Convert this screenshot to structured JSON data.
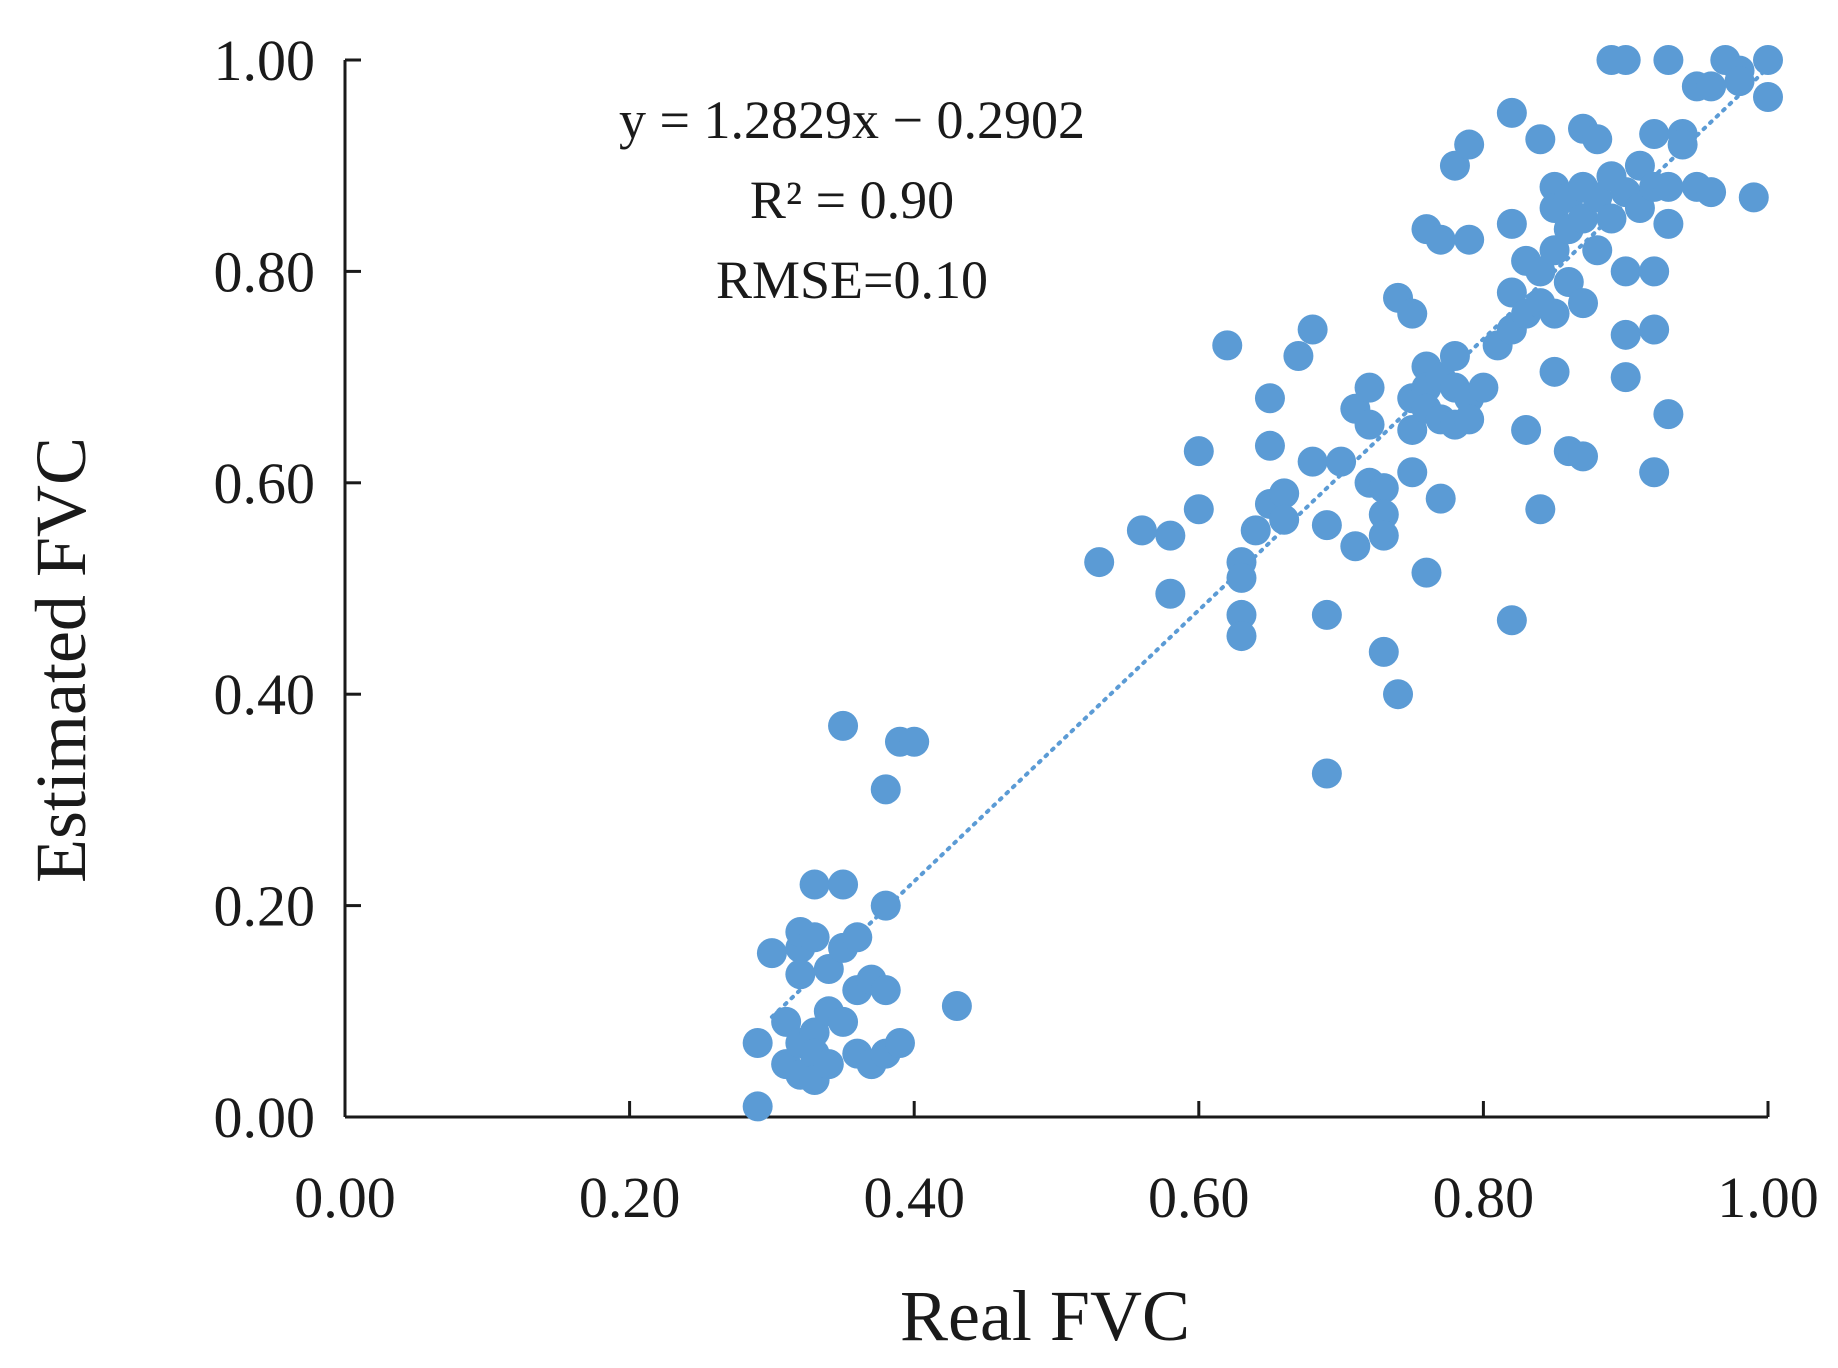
{
  "chart_data": {
    "type": "scatter",
    "xlabel": "Real FVC",
    "ylabel": "Estimated FVC",
    "xlim": [
      0,
      1
    ],
    "ylim": [
      0,
      1
    ],
    "xticks": [
      "0.00",
      "0.20",
      "0.40",
      "0.60",
      "0.80",
      "1.00"
    ],
    "yticks": [
      "0.00",
      "0.20",
      "0.40",
      "0.60",
      "0.80",
      "1.00"
    ],
    "grid": false,
    "point_color": "#5B9BD5",
    "trendline": {
      "slope": 1.2829,
      "intercept": -0.2902,
      "style": "dotted",
      "x_range": [
        0.3,
        1.0
      ]
    },
    "annotations": {
      "equation": "y = 1.2829x − 0.2902",
      "r2": "R² = 0.90",
      "rmse": "RMSE=0.10"
    },
    "series": [
      {
        "name": "samples",
        "points": [
          [
            0.29,
            0.01
          ],
          [
            0.29,
            0.07
          ],
          [
            0.3,
            0.155
          ],
          [
            0.31,
            0.09
          ],
          [
            0.31,
            0.05
          ],
          [
            0.32,
            0.16
          ],
          [
            0.32,
            0.175
          ],
          [
            0.32,
            0.135
          ],
          [
            0.32,
            0.07
          ],
          [
            0.32,
            0.04
          ],
          [
            0.33,
            0.22
          ],
          [
            0.33,
            0.17
          ],
          [
            0.33,
            0.08
          ],
          [
            0.33,
            0.06
          ],
          [
            0.33,
            0.035
          ],
          [
            0.34,
            0.14
          ],
          [
            0.34,
            0.1
          ],
          [
            0.34,
            0.05
          ],
          [
            0.35,
            0.16
          ],
          [
            0.35,
            0.09
          ],
          [
            0.35,
            0.22
          ],
          [
            0.35,
            0.37
          ],
          [
            0.36,
            0.17
          ],
          [
            0.36,
            0.12
          ],
          [
            0.36,
            0.06
          ],
          [
            0.37,
            0.13
          ],
          [
            0.37,
            0.05
          ],
          [
            0.38,
            0.12
          ],
          [
            0.38,
            0.06
          ],
          [
            0.38,
            0.2
          ],
          [
            0.38,
            0.31
          ],
          [
            0.39,
            0.355
          ],
          [
            0.4,
            0.355
          ],
          [
            0.39,
            0.07
          ],
          [
            0.43,
            0.105
          ],
          [
            0.53,
            0.525
          ],
          [
            0.56,
            0.555
          ],
          [
            0.58,
            0.55
          ],
          [
            0.58,
            0.495
          ],
          [
            0.6,
            0.63
          ],
          [
            0.6,
            0.575
          ],
          [
            0.62,
            0.73
          ],
          [
            0.63,
            0.525
          ],
          [
            0.63,
            0.51
          ],
          [
            0.63,
            0.475
          ],
          [
            0.63,
            0.455
          ],
          [
            0.64,
            0.555
          ],
          [
            0.65,
            0.68
          ],
          [
            0.65,
            0.635
          ],
          [
            0.65,
            0.58
          ],
          [
            0.66,
            0.59
          ],
          [
            0.66,
            0.565
          ],
          [
            0.67,
            0.72
          ],
          [
            0.68,
            0.745
          ],
          [
            0.68,
            0.62
          ],
          [
            0.69,
            0.56
          ],
          [
            0.69,
            0.475
          ],
          [
            0.69,
            0.325
          ],
          [
            0.7,
            0.62
          ],
          [
            0.71,
            0.67
          ],
          [
            0.71,
            0.54
          ],
          [
            0.72,
            0.69
          ],
          [
            0.72,
            0.655
          ],
          [
            0.72,
            0.6
          ],
          [
            0.73,
            0.595
          ],
          [
            0.73,
            0.57
          ],
          [
            0.73,
            0.55
          ],
          [
            0.73,
            0.44
          ],
          [
            0.74,
            0.4
          ],
          [
            0.74,
            0.775
          ],
          [
            0.75,
            0.76
          ],
          [
            0.75,
            0.68
          ],
          [
            0.75,
            0.65
          ],
          [
            0.75,
            0.61
          ],
          [
            0.76,
            0.71
          ],
          [
            0.76,
            0.69
          ],
          [
            0.76,
            0.67
          ],
          [
            0.76,
            0.84
          ],
          [
            0.77,
            0.83
          ],
          [
            0.77,
            0.7
          ],
          [
            0.77,
            0.66
          ],
          [
            0.77,
            0.585
          ],
          [
            0.76,
            0.515
          ],
          [
            0.78,
            0.72
          ],
          [
            0.78,
            0.69
          ],
          [
            0.78,
            0.655
          ],
          [
            0.78,
            0.9
          ],
          [
            0.79,
            0.92
          ],
          [
            0.79,
            0.83
          ],
          [
            0.79,
            0.68
          ],
          [
            0.79,
            0.66
          ],
          [
            0.8,
            0.69
          ],
          [
            0.81,
            0.73
          ],
          [
            0.82,
            0.95
          ],
          [
            0.82,
            0.845
          ],
          [
            0.82,
            0.745
          ],
          [
            0.82,
            0.78
          ],
          [
            0.83,
            0.81
          ],
          [
            0.83,
            0.76
          ],
          [
            0.83,
            0.65
          ],
          [
            0.82,
            0.47
          ],
          [
            0.84,
            0.925
          ],
          [
            0.84,
            0.8
          ],
          [
            0.84,
            0.77
          ],
          [
            0.84,
            0.575
          ],
          [
            0.85,
            0.88
          ],
          [
            0.85,
            0.86
          ],
          [
            0.85,
            0.82
          ],
          [
            0.85,
            0.76
          ],
          [
            0.85,
            0.705
          ],
          [
            0.86,
            0.87
          ],
          [
            0.86,
            0.84
          ],
          [
            0.86,
            0.79
          ],
          [
            0.86,
            0.63
          ],
          [
            0.87,
            0.935
          ],
          [
            0.87,
            0.88
          ],
          [
            0.87,
            0.85
          ],
          [
            0.87,
            0.77
          ],
          [
            0.87,
            0.625
          ],
          [
            0.88,
            0.925
          ],
          [
            0.88,
            0.87
          ],
          [
            0.88,
            0.82
          ],
          [
            0.89,
            1.0
          ],
          [
            0.89,
            0.89
          ],
          [
            0.89,
            0.85
          ],
          [
            0.9,
            1.0
          ],
          [
            0.9,
            0.875
          ],
          [
            0.9,
            0.8
          ],
          [
            0.9,
            0.74
          ],
          [
            0.9,
            0.7
          ],
          [
            0.91,
            0.9
          ],
          [
            0.91,
            0.86
          ],
          [
            0.92,
            0.93
          ],
          [
            0.92,
            0.88
          ],
          [
            0.92,
            0.8
          ],
          [
            0.92,
            0.745
          ],
          [
            0.92,
            0.61
          ],
          [
            0.93,
            1.0
          ],
          [
            0.93,
            0.88
          ],
          [
            0.93,
            0.845
          ],
          [
            0.93,
            0.665
          ],
          [
            0.94,
            0.93
          ],
          [
            0.94,
            0.92
          ],
          [
            0.95,
            0.975
          ],
          [
            0.95,
            0.88
          ],
          [
            0.96,
            0.875
          ],
          [
            0.96,
            0.975
          ],
          [
            0.97,
            1.0
          ],
          [
            0.98,
            0.99
          ],
          [
            0.98,
            0.98
          ],
          [
            0.99,
            0.87
          ],
          [
            1.0,
            1.0
          ],
          [
            1.0,
            0.965
          ]
        ]
      }
    ]
  }
}
